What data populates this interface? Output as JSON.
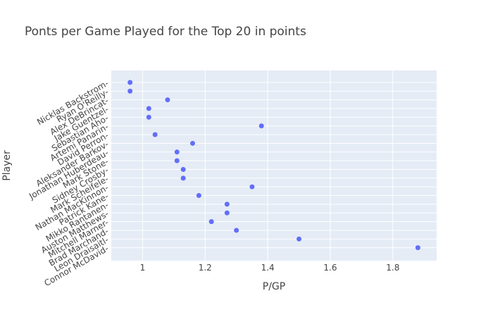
{
  "chart_data": {
    "type": "scatter",
    "title": "Ponts per Game Played for the Top 20 in points",
    "xlabel": "P/GP",
    "ylabel": "Player",
    "xlim": [
      0.9,
      1.94
    ],
    "x_ticks": [
      1,
      1.2,
      1.4,
      1.6,
      1.8
    ],
    "x_tick_labels": [
      "1",
      "1.2",
      "1.4",
      "1.6",
      "1.8"
    ],
    "grid": true,
    "categories": [
      "Nicklas Backstrom",
      "Ryan O'Reilly",
      "Alex DeBrincat",
      "Jake Guentzel",
      "Sebastian Aho",
      "Artemi Panarin",
      "David Perron",
      "Aleksander Barkov",
      "Jonathan Huberdeau",
      "Mark Stone",
      "Sidney Crosby",
      "Mark Scheifele",
      "Nathan MacKinnon",
      "Patrick Kane",
      "Mikko Rantanen",
      "Auston Matthews",
      "Mitchell Marner",
      "Brad Marchand",
      "Leon Draisaitl",
      "Connor McDavid"
    ],
    "values": [
      0.96,
      0.96,
      1.08,
      1.02,
      1.02,
      1.38,
      1.04,
      1.16,
      1.11,
      1.11,
      1.13,
      1.13,
      1.35,
      1.18,
      1.27,
      1.27,
      1.22,
      1.3,
      1.5,
      1.88
    ],
    "marker_color": "#636efa",
    "plot_background": "#e5ecf6"
  }
}
